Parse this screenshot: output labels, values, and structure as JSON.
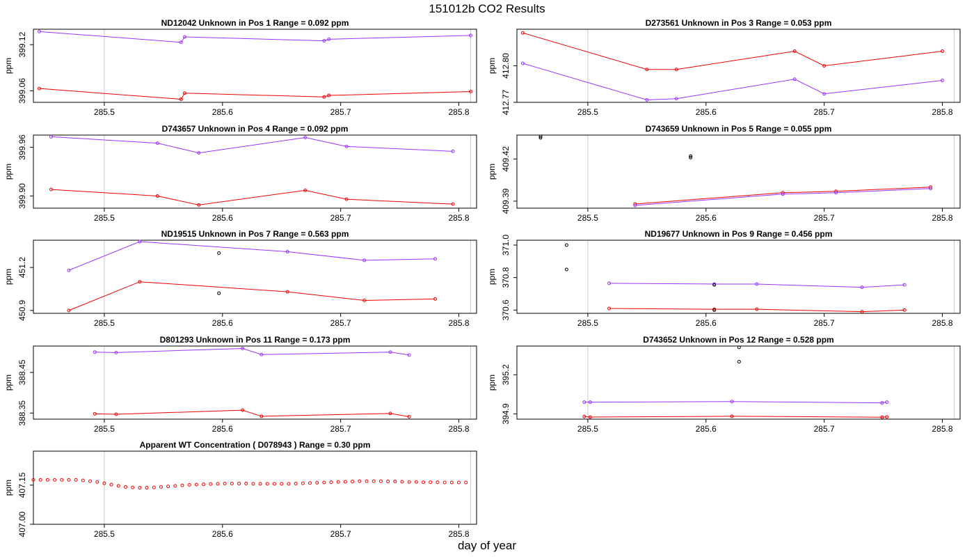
{
  "page": {
    "title": "151012b  CO2 Results",
    "xlabel": "day of year"
  },
  "colors": {
    "series1": "#ee0000",
    "series2": "#9933ff",
    "marker": "#000000",
    "ref_line": "#c8c8c8",
    "axis": "#000000"
  },
  "chart_data": [
    {
      "type": "line",
      "panel": "pos1",
      "title": "ND12042    Unknown in Pos 1         Range =  0.092 ppm",
      "ylabel": "ppm",
      "xlim": [
        285.44,
        285.815
      ],
      "ylim": [
        399.045,
        399.14
      ],
      "xticks": [
        285.5,
        285.6,
        285.7,
        285.8
      ],
      "yticks": [
        399.06,
        399.12
      ],
      "ref_lines": [
        285.5,
        285.81
      ],
      "series": [
        {
          "name": "red",
          "color": "red",
          "x": [
            285.445,
            285.565,
            285.568,
            285.686,
            285.69,
            285.81
          ],
          "y": [
            399.063,
            399.049,
            399.057,
            399.052,
            399.054,
            399.059
          ]
        },
        {
          "name": "purple",
          "color": "purple",
          "x": [
            285.445,
            285.565,
            285.568,
            285.686,
            285.69,
            285.81
          ],
          "y": [
            399.137,
            399.123,
            399.13,
            399.125,
            399.127,
            399.132
          ]
        }
      ],
      "markers": []
    },
    {
      "type": "line",
      "panel": "pos3",
      "title": "D273561    Unknown in Pos 3         Range =  0.053 ppm",
      "ylabel": "ppm",
      "xlim": [
        285.44,
        285.815
      ],
      "ylim": [
        412.77,
        412.83
      ],
      "xticks": [
        285.5,
        285.6,
        285.7,
        285.8
      ],
      "yticks": [
        412.77,
        412.8
      ],
      "ref_lines": [
        285.5,
        285.81
      ],
      "series": [
        {
          "name": "red",
          "color": "red",
          "x": [
            285.445,
            285.55,
            285.575,
            285.675,
            285.7,
            285.8
          ],
          "y": [
            412.827,
            412.797,
            412.797,
            412.812,
            412.8,
            412.812
          ]
        },
        {
          "name": "purple",
          "color": "purple",
          "x": [
            285.445,
            285.55,
            285.575,
            285.675,
            285.7,
            285.8
          ],
          "y": [
            412.802,
            412.772,
            412.773,
            412.789,
            412.777,
            412.788
          ]
        }
      ],
      "markers": []
    },
    {
      "type": "line",
      "panel": "pos4",
      "title": "D743657    Unknown in Pos 4         Range =  0.092 ppm",
      "ylabel": "ppm",
      "xlim": [
        285.44,
        285.815
      ],
      "ylim": [
        399.885,
        399.975
      ],
      "xticks": [
        285.5,
        285.6,
        285.7,
        285.8
      ],
      "yticks": [
        399.9,
        399.96
      ],
      "ref_lines": [
        285.5,
        285.81
      ],
      "series": [
        {
          "name": "red",
          "color": "red",
          "x": [
            285.455,
            285.545,
            285.58,
            285.67,
            285.705,
            285.795
          ],
          "y": [
            399.908,
            399.9,
            399.889,
            399.907,
            399.896,
            399.89
          ]
        },
        {
          "name": "purple",
          "color": "purple",
          "x": [
            285.455,
            285.545,
            285.58,
            285.67,
            285.705,
            285.795
          ],
          "y": [
            399.973,
            399.965,
            399.953,
            399.972,
            399.961,
            399.955
          ]
        }
      ],
      "markers": []
    },
    {
      "type": "line",
      "panel": "pos5",
      "title": "D743659    Unknown in Pos 5         Range =  0.055 ppm",
      "ylabel": "ppm",
      "xlim": [
        285.44,
        285.815
      ],
      "ylim": [
        409.385,
        409.437
      ],
      "xticks": [
        285.5,
        285.6,
        285.7,
        285.8
      ],
      "yticks": [
        409.39,
        409.42
      ],
      "ref_lines": [
        285.5,
        285.81
      ],
      "series": [
        {
          "name": "red",
          "color": "red",
          "x": [
            285.54,
            285.665,
            285.71,
            285.79
          ],
          "y": [
            409.388,
            409.396,
            409.397,
            409.4
          ]
        },
        {
          "name": "purple",
          "color": "purple",
          "x": [
            285.54,
            285.665,
            285.71,
            285.79
          ],
          "y": [
            409.387,
            409.395,
            409.396,
            409.399
          ]
        }
      ],
      "markers": [
        {
          "x": 285.46,
          "y": 409.436
        },
        {
          "x": 285.46,
          "y": 409.435
        },
        {
          "x": 285.587,
          "y": 409.422
        },
        {
          "x": 285.587,
          "y": 409.421
        }
      ]
    },
    {
      "type": "line",
      "panel": "pos7",
      "title": "ND19515    Unknown in Pos 7         Range =  0.563 ppm",
      "ylabel": "ppm",
      "xlim": [
        285.44,
        285.815
      ],
      "ylim": [
        450.88,
        451.39
      ],
      "xticks": [
        285.5,
        285.6,
        285.7,
        285.8
      ],
      "yticks": [
        450.9,
        451.2
      ],
      "ref_lines": [
        285.5,
        285.81
      ],
      "series": [
        {
          "name": "red",
          "color": "red",
          "x": [
            285.47,
            285.53,
            285.655,
            285.72,
            285.78
          ],
          "y": [
            450.9,
            451.1,
            451.03,
            450.97,
            450.98
          ]
        },
        {
          "name": "purple",
          "color": "purple",
          "x": [
            285.47,
            285.53,
            285.655,
            285.72,
            285.78
          ],
          "y": [
            451.18,
            451.38,
            451.31,
            451.25,
            451.26
          ]
        }
      ],
      "markers": [
        {
          "x": 285.597,
          "y": 451.3
        },
        {
          "x": 285.597,
          "y": 451.02
        }
      ]
    },
    {
      "type": "line",
      "panel": "pos9",
      "title": "ND19677    Unknown in Pos 9         Range =  0.456 ppm",
      "ylabel": "ppm",
      "xlim": [
        285.44,
        285.815
      ],
      "ylim": [
        370.58,
        371.03
      ],
      "xticks": [
        285.5,
        285.6,
        285.7,
        285.8
      ],
      "yticks": [
        370.6,
        370.8,
        371.0
      ],
      "ref_lines": [
        285.5,
        285.81
      ],
      "series": [
        {
          "name": "red",
          "color": "red",
          "x": [
            285.518,
            285.607,
            285.643,
            285.732,
            285.768
          ],
          "y": [
            370.61,
            370.605,
            370.605,
            370.59,
            370.6
          ]
        },
        {
          "name": "purple",
          "color": "purple",
          "x": [
            285.518,
            285.607,
            285.643,
            285.732,
            285.768
          ],
          "y": [
            370.765,
            370.76,
            370.76,
            370.74,
            370.755
          ]
        }
      ],
      "markers": [
        {
          "x": 285.482,
          "y": 371.0
        },
        {
          "x": 285.482,
          "y": 370.85
        },
        {
          "x": 285.607,
          "y": 370.755
        },
        {
          "x": 285.607,
          "y": 370.6
        }
      ]
    },
    {
      "type": "line",
      "panel": "pos11",
      "title": "D801293    Unknown in Pos 11         Range =  0.173 ppm",
      "ylabel": "ppm",
      "xlim": [
        285.44,
        285.815
      ],
      "ylim": [
        388.335,
        388.515
      ],
      "xticks": [
        285.5,
        285.6,
        285.7,
        285.8
      ],
      "yticks": [
        388.35,
        388.45
      ],
      "ref_lines": [
        285.5,
        285.81
      ],
      "series": [
        {
          "name": "red",
          "color": "red",
          "x": [
            285.492,
            285.51,
            285.617,
            285.633,
            285.742,
            285.758
          ],
          "y": [
            388.348,
            388.347,
            388.357,
            388.342,
            388.349,
            388.341
          ]
        },
        {
          "name": "purple",
          "color": "purple",
          "x": [
            285.492,
            285.51,
            285.617,
            285.633,
            285.742,
            285.758
          ],
          "y": [
            388.5,
            388.499,
            388.509,
            388.494,
            388.5,
            388.493
          ]
        }
      ],
      "markers": []
    },
    {
      "type": "line",
      "panel": "pos12",
      "title": "D743652    Unknown in Pos 12         Range =  0.528 ppm",
      "ylabel": "ppm",
      "xlim": [
        285.44,
        285.815
      ],
      "ylim": [
        394.86,
        395.42
      ],
      "xticks": [
        285.5,
        285.6,
        285.7,
        285.8
      ],
      "yticks": [
        394.9,
        395.2
      ],
      "ref_lines": [
        285.5,
        285.81
      ],
      "series": [
        {
          "name": "red",
          "color": "red",
          "x": [
            285.497,
            285.502,
            285.622,
            285.749,
            285.753
          ],
          "y": [
            394.88,
            394.876,
            394.882,
            394.875,
            394.877
          ]
        },
        {
          "name": "purple",
          "color": "purple",
          "x": [
            285.497,
            285.502,
            285.622,
            285.749,
            285.753
          ],
          "y": [
            394.99,
            394.99,
            394.995,
            394.985,
            394.99
          ]
        }
      ],
      "markers": [
        {
          "x": 285.628,
          "y": 395.41
        },
        {
          "x": 285.628,
          "y": 395.3
        }
      ]
    },
    {
      "type": "scatter",
      "panel": "wt",
      "title": "Apparent WT Concentration ( D078943 )          Range = 0.30 ppm",
      "ylabel": "ppm",
      "xlim": [
        285.44,
        285.815
      ],
      "ylim": [
        407.0,
        407.28
      ],
      "xticks": [
        285.5,
        285.6,
        285.7,
        285.8
      ],
      "yticks": [
        407.0,
        407.15
      ],
      "ref_lines": [
        285.5,
        285.81
      ],
      "series": [
        {
          "name": "WT",
          "color": "red",
          "x": [
            285.44,
            285.446,
            285.452,
            285.458,
            285.464,
            285.47,
            285.476,
            285.482,
            285.488,
            285.494,
            285.5,
            285.506,
            285.512,
            285.518,
            285.524,
            285.53,
            285.536,
            285.542,
            285.548,
            285.554,
            285.56,
            285.566,
            285.572,
            285.578,
            285.584,
            285.59,
            285.596,
            285.602,
            285.608,
            285.614,
            285.62,
            285.626,
            285.632,
            285.638,
            285.644,
            285.65,
            285.656,
            285.662,
            285.668,
            285.674,
            285.68,
            285.686,
            285.692,
            285.698,
            285.704,
            285.71,
            285.716,
            285.722,
            285.728,
            285.734,
            285.74,
            285.746,
            285.752,
            285.758,
            285.764,
            285.77,
            285.776,
            285.782,
            285.788,
            285.794,
            285.8,
            285.806
          ],
          "y": [
            407.17,
            407.17,
            407.17,
            407.17,
            407.17,
            407.17,
            407.17,
            407.168,
            407.165,
            407.162,
            407.157,
            407.152,
            407.147,
            407.143,
            407.141,
            407.14,
            407.14,
            407.141,
            407.143,
            407.145,
            407.147,
            407.149,
            407.151,
            407.152,
            407.153,
            407.154,
            407.155,
            407.156,
            407.156,
            407.156,
            407.156,
            407.155,
            407.155,
            407.155,
            407.155,
            407.155,
            407.155,
            407.156,
            407.157,
            407.158,
            407.159,
            407.16,
            407.161,
            407.162,
            407.163,
            407.164,
            407.165,
            407.165,
            407.165,
            407.165,
            407.164,
            407.164,
            407.163,
            407.162,
            407.162,
            407.161,
            407.161,
            407.161,
            407.16,
            407.16,
            407.16,
            407.16
          ]
        }
      ],
      "markers": []
    }
  ]
}
